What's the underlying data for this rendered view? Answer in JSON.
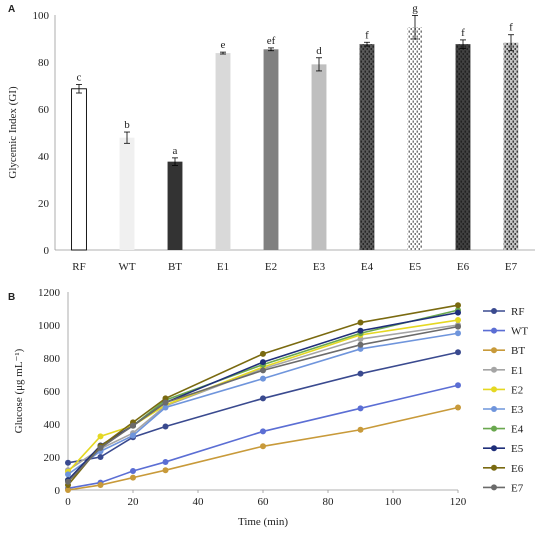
{
  "chart_data": [
    {
      "panel": "A",
      "type": "bar",
      "ylabel": "Glycemic Index (GI)",
      "xlabel": "",
      "ylim": [
        0,
        100
      ],
      "yticks": [
        0,
        20,
        40,
        60,
        80,
        100
      ],
      "grid": false,
      "categories": [
        "RF",
        "WT",
        "BT",
        "E1",
        "E2",
        "E3",
        "E4",
        "E5",
        "E6",
        "E7"
      ],
      "values": [
        68.6,
        47.8,
        37.6,
        83.8,
        85.4,
        79.0,
        87.6,
        94.8,
        87.6,
        88.2
      ],
      "errors": [
        1.8,
        2.4,
        1.6,
        0.4,
        0.6,
        2.8,
        0.8,
        5.0,
        1.8,
        3.4
      ],
      "significance": [
        "c",
        "b",
        "a",
        "e",
        "ef",
        "d",
        "f",
        "g",
        "f",
        "f"
      ],
      "fills": [
        "#ffffff",
        "#f0f0f0",
        "#333333",
        "#d9d9d9",
        "#808080",
        "#bfbfbf",
        "#595959",
        "#ffffff",
        "#404040",
        "#c4c4c4"
      ],
      "patterns": [
        "none",
        "none",
        "none",
        "none",
        "none",
        "none",
        "dots",
        "dots",
        "dots",
        "dots"
      ]
    },
    {
      "panel": "B",
      "type": "line",
      "xlabel": "Time (min)",
      "ylabel": "Glucose (μg mL⁻¹)",
      "xlim": [
        0,
        120
      ],
      "ylim": [
        0,
        1200
      ],
      "xticks": [
        0,
        20,
        40,
        60,
        80,
        100,
        120
      ],
      "yticks": [
        0,
        200,
        400,
        600,
        800,
        1000,
        1200
      ],
      "grid": false,
      "legend": "right",
      "x": [
        0,
        10,
        20,
        30,
        60,
        90,
        120
      ],
      "series": [
        {
          "name": "RF",
          "color": "#3a4a8f",
          "values": [
            165,
            200,
            320,
            385,
            555,
            705,
            835
          ]
        },
        {
          "name": "WT",
          "color": "#5b6ed4",
          "values": [
            10,
            45,
            115,
            170,
            355,
            495,
            635
          ]
        },
        {
          "name": "BT",
          "color": "#c89a3a",
          "values": [
            0,
            30,
            75,
            120,
            265,
            365,
            500
          ]
        },
        {
          "name": "E1",
          "color": "#a5a5a5",
          "values": [
            120,
            250,
            345,
            510,
            735,
            915,
            1000
          ]
        },
        {
          "name": "E2",
          "color": "#e5d822",
          "values": [
            110,
            325,
            390,
            515,
            745,
            940,
            1030
          ]
        },
        {
          "name": "E3",
          "color": "#6f95dc",
          "values": [
            95,
            235,
            330,
            500,
            675,
            855,
            950
          ]
        },
        {
          "name": "E4",
          "color": "#6aa84f",
          "values": [
            60,
            260,
            390,
            545,
            760,
            950,
            1090
          ]
        },
        {
          "name": "E5",
          "color": "#1f2f7a",
          "values": [
            60,
            270,
            390,
            530,
            775,
            965,
            1075
          ]
        },
        {
          "name": "E6",
          "color": "#7a6a10",
          "values": [
            30,
            265,
            410,
            555,
            825,
            1015,
            1120
          ]
        },
        {
          "name": "E7",
          "color": "#6b6b6b",
          "values": [
            50,
            255,
            390,
            530,
            725,
            880,
            990
          ]
        }
      ]
    }
  ]
}
